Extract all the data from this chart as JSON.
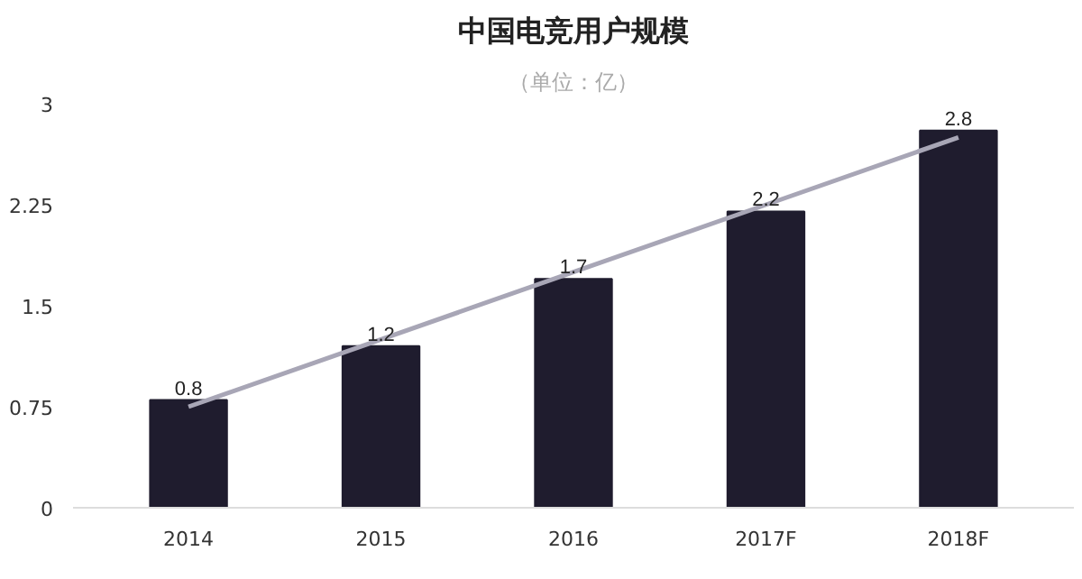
{
  "chart_data": {
    "type": "bar",
    "title": "中国电竞用户规模",
    "subtitle": "（单位：亿）",
    "categories": [
      "2014",
      "2015",
      "2016",
      "2017F",
      "2018F"
    ],
    "series": [
      {
        "color": "#1f1c2e",
        "values": [
          0.8,
          1.2,
          1.7,
          2.2,
          2.8
        ],
        "value_labels": [
          "0.8",
          "1.2",
          "1.7",
          "2.2",
          "2.8"
        ]
      },
      {
        "type": "line",
        "color": "#a8a6b6",
        "values": [
          0.75,
          1.25,
          1.75,
          2.25,
          2.75
        ]
      }
    ],
    "ylim": [
      0,
      3
    ],
    "yticks": [
      0,
      {
        "value": 0.75,
        "label": "0.75"
      },
      {
        "value": 1.5,
        "label": "1.5"
      },
      {
        "value": 2.25,
        "label": "2.25"
      },
      3
    ],
    "grid": false
  }
}
